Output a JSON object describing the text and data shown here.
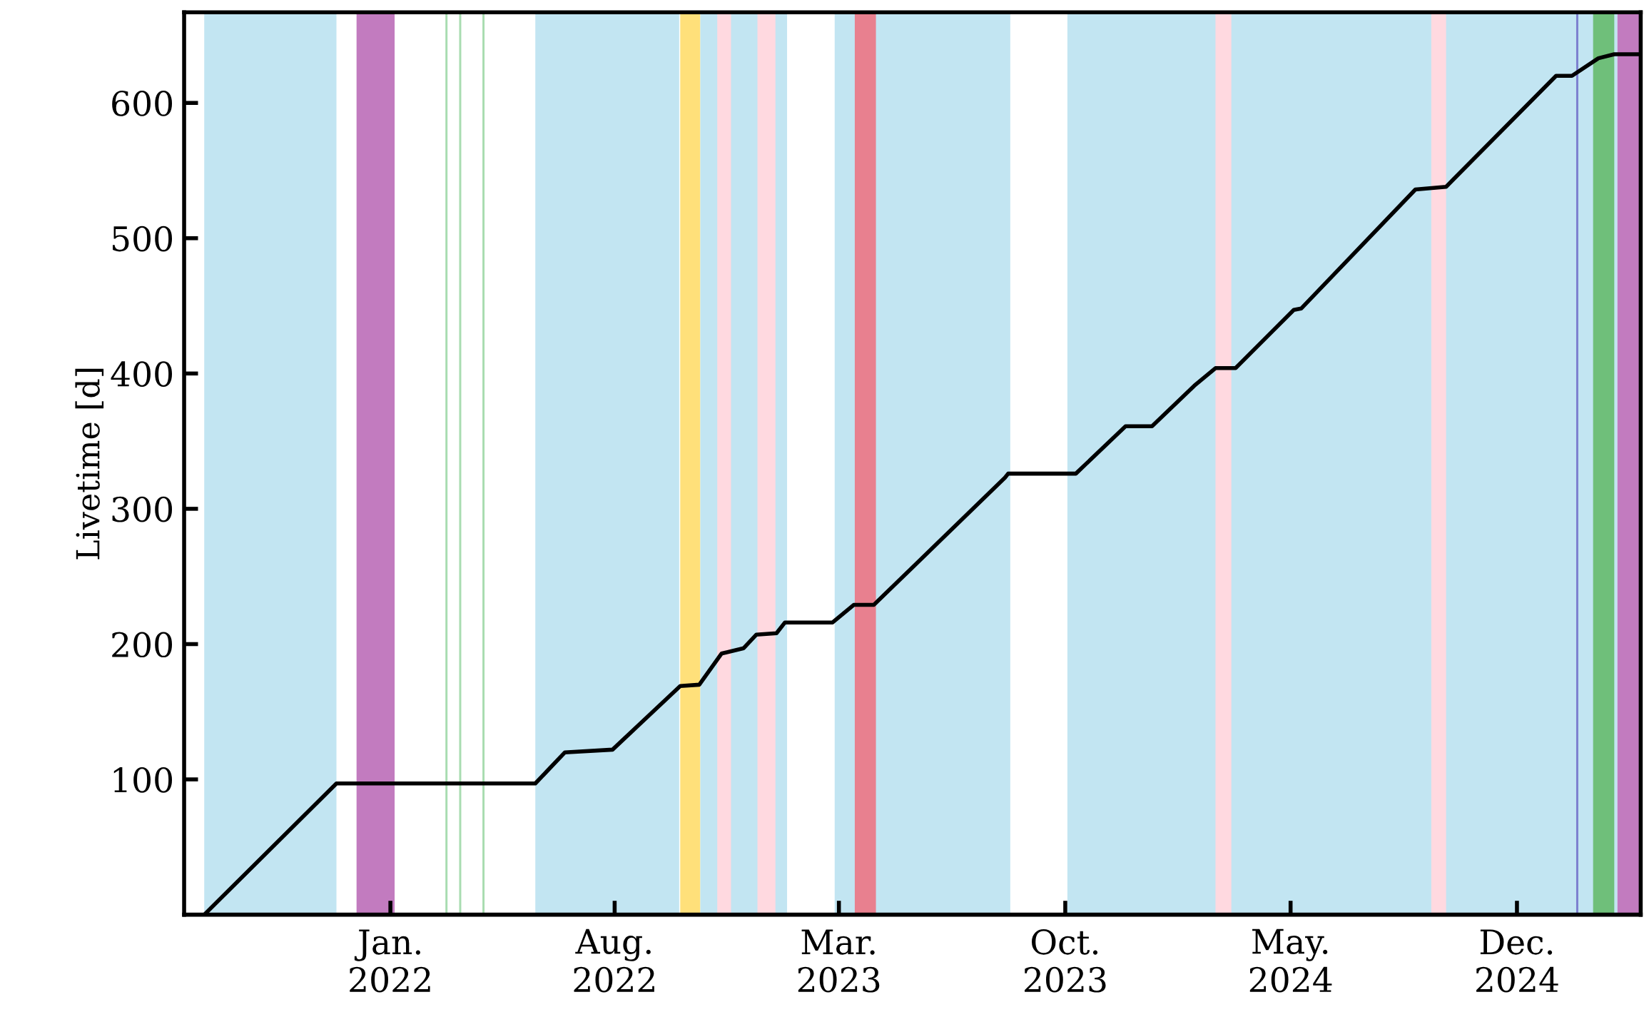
{
  "chart_data": {
    "type": "line",
    "ylabel": "Livetime [d]",
    "x": [
      "2021-07-09",
      "2021-11-11",
      "2022-05-18",
      "2022-06-15",
      "2022-07-30",
      "2022-10-02",
      "2022-10-20",
      "2022-11-10",
      "2022-12-01",
      "2022-12-13",
      "2023-01-01",
      "2023-01-09",
      "2023-02-23",
      "2023-03-15",
      "2023-04-03",
      "2023-08-05",
      "2023-08-08",
      "2023-10-11",
      "2023-11-27",
      "2023-12-22",
      "2024-01-31",
      "2024-02-20",
      "2024-03-10",
      "2024-05-04",
      "2024-05-11",
      "2024-08-27",
      "2024-09-25",
      "2025-01-07",
      "2025-01-22",
      "2025-02-16",
      "2025-03-03",
      "2025-03-28"
    ],
    "series": [
      {
        "color": "#000000",
        "values": [
          0,
          97,
          97,
          120,
          122,
          169,
          170,
          193,
          197,
          207,
          208,
          216,
          216,
          229,
          229,
          323,
          326,
          326,
          361,
          361,
          391,
          404,
          404,
          447,
          448,
          536,
          538,
          620,
          620,
          633,
          636,
          636
        ]
      }
    ],
    "xlim": [
      "2021-06-20",
      "2025-03-28"
    ],
    "ylim": [
      0,
      667
    ],
    "xticks": [
      {
        "value": "2022-01-01",
        "label": "Jan.\n2022"
      },
      {
        "value": "2022-08-01",
        "label": "Aug.\n2022"
      },
      {
        "value": "2023-03-01",
        "label": "Mar.\n2023"
      },
      {
        "value": "2023-10-01",
        "label": "Oct.\n2023"
      },
      {
        "value": "2024-05-01",
        "label": "May.\n2024"
      },
      {
        "value": "2024-12-01",
        "label": "Dec.\n2024"
      }
    ],
    "yticks": [
      100,
      200,
      300,
      400,
      500,
      600
    ],
    "grid": false,
    "legend": false,
    "marker": "none",
    "line_style": "solid",
    "bands": [
      {
        "axis": "x",
        "from": "2021-07-09",
        "to": "2021-11-11",
        "color": "#c2e5f2"
      },
      {
        "axis": "x",
        "from": "2021-11-30",
        "to": "2022-01-05",
        "color": "#c27bbf"
      },
      {
        "axis": "x",
        "from": "2022-02-22",
        "to": "2022-02-24",
        "color": "#a8dcb0"
      },
      {
        "axis": "x",
        "from": "2022-03-07",
        "to": "2022-03-09",
        "color": "#a8dcb0"
      },
      {
        "axis": "x",
        "from": "2022-03-29",
        "to": "2022-03-31",
        "color": "#a8dcb0"
      },
      {
        "axis": "x",
        "from": "2022-05-18",
        "to": "2022-10-01",
        "color": "#c2e5f2"
      },
      {
        "axis": "x",
        "from": "2022-10-02",
        "to": "2022-10-21",
        "color": "#ffe07a"
      },
      {
        "axis": "x",
        "from": "2022-10-21",
        "to": "2023-01-11",
        "color": "#c2e5f2"
      },
      {
        "axis": "x",
        "from": "2022-11-06",
        "to": "2022-11-19",
        "color": "#ffd9e0"
      },
      {
        "axis": "x",
        "from": "2022-12-14",
        "to": "2022-12-31",
        "color": "#ffd9e0"
      },
      {
        "axis": "x",
        "from": "2023-02-25",
        "to": "2023-08-10",
        "color": "#c2e5f2"
      },
      {
        "axis": "x",
        "from": "2023-03-16",
        "to": "2023-04-05",
        "color": "#e8808f"
      },
      {
        "axis": "x",
        "from": "2023-10-03",
        "to": "2025-03-06",
        "color": "#c2e5f2"
      },
      {
        "axis": "x",
        "from": "2024-02-20",
        "to": "2024-03-06",
        "color": "#ffd9e0"
      },
      {
        "axis": "x",
        "from": "2024-09-11",
        "to": "2024-09-25",
        "color": "#ffd9e0"
      },
      {
        "axis": "x",
        "from": "2025-01-26",
        "to": "2025-01-28",
        "color": "#7b7fcf"
      },
      {
        "axis": "x",
        "from": "2025-02-11",
        "to": "2025-03-03",
        "color": "#6fbf7a"
      },
      {
        "axis": "x",
        "from": "2025-03-06",
        "to": "2025-03-28",
        "color": "#c27bbf"
      }
    ]
  }
}
